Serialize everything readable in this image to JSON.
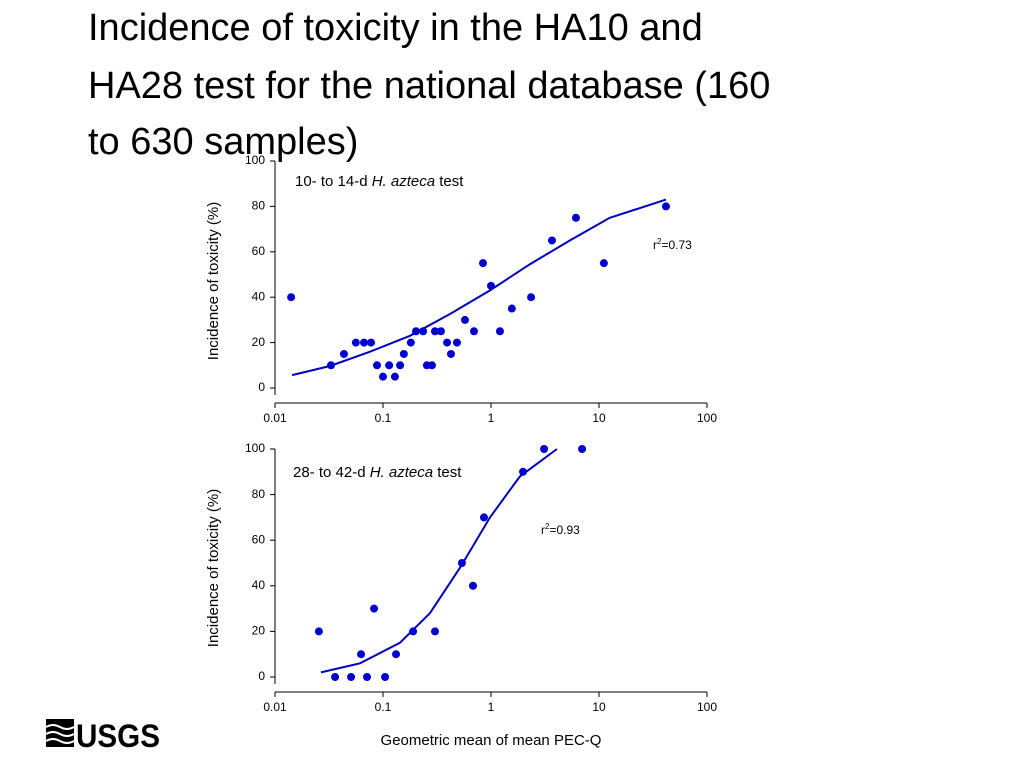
{
  "title": [
    "Incidence of toxicity in the HA10 and",
    "HA28 test for the national database (160",
    "to 630 samples)"
  ],
  "logo": "USGS",
  "chart_data": [
    {
      "type": "scatter",
      "xscale": "log",
      "ylabel": "Incidence of toxicity (%)",
      "annotation": [
        "10- to 14-d ",
        "H. azteca",
        " test"
      ],
      "r2": [
        "r",
        "2",
        "=0.73"
      ],
      "color": "#0000d0",
      "x": [
        0.0141,
        0.033,
        0.0435,
        0.056,
        0.0667,
        0.0775,
        0.088,
        0.1,
        0.114,
        0.129,
        0.144,
        0.156,
        0.181,
        0.202,
        0.235,
        0.255,
        0.284,
        0.303,
        0.344,
        0.392,
        0.426,
        0.484,
        0.574,
        0.696,
        0.843,
        1,
        1.21,
        1.56,
        2.35,
        3.67,
        6.12,
        11.1,
        41.7
      ],
      "values": [
        40,
        10,
        15,
        20,
        20,
        20,
        10,
        5,
        10,
        5,
        10,
        15,
        20,
        25,
        25,
        10,
        10,
        25,
        25,
        20,
        15,
        20,
        30,
        25,
        55,
        45,
        25,
        35,
        40,
        65,
        75,
        55,
        80
      ],
      "fit": {
        "color": "#0000c0",
        "x": [
          0.0144,
          0.0323,
          0.0758,
          0.178,
          0.417,
          0.979,
          2.3,
          5.39,
          12.6,
          41.7
        ],
        "values": [
          5.7,
          9.7,
          16,
          23,
          32.6,
          43,
          54.6,
          65,
          75,
          83
        ]
      },
      "xlim": [
        0.01,
        100
      ],
      "ylim": [
        0,
        100
      ],
      "xticks": [
        0.01,
        0.1,
        1,
        10,
        100
      ],
      "yticks": [
        0,
        20,
        40,
        60,
        80,
        100
      ]
    },
    {
      "type": "scatter",
      "xscale": "log",
      "ylabel": "Incidence of toxicity (%)",
      "xlabel": "Geometric mean of mean PEC-Q",
      "annotation": [
        "28- to 42-d ",
        "H. azteca",
        " test"
      ],
      "r2": [
        "r",
        "2",
        "=0.93"
      ],
      "color": "#0000d0",
      "x": [
        0.0255,
        0.036,
        0.0506,
        0.0626,
        0.0711,
        0.0826,
        0.1045,
        0.132,
        0.19,
        0.303,
        0.538,
        0.681,
        0.861,
        1.98,
        3.1,
        6.97
      ],
      "values": [
        20,
        0,
        0,
        10,
        0,
        30,
        0,
        10,
        20,
        20,
        50,
        40,
        70,
        90,
        100,
        100
      ],
      "fit": {
        "color": "#0000c0",
        "x": [
          0.0266,
          0.0612,
          0.1435,
          0.272,
          0.518,
          0.979,
          1.85,
          4.08
        ],
        "values": [
          2,
          6,
          15,
          28,
          48,
          70,
          88,
          100
        ]
      },
      "xlim": [
        0.01,
        100
      ],
      "ylim": [
        0,
        100
      ],
      "xticks": [
        0.01,
        0.1,
        1,
        10,
        100
      ],
      "yticks": [
        0,
        20,
        40,
        60,
        80,
        100
      ]
    }
  ]
}
